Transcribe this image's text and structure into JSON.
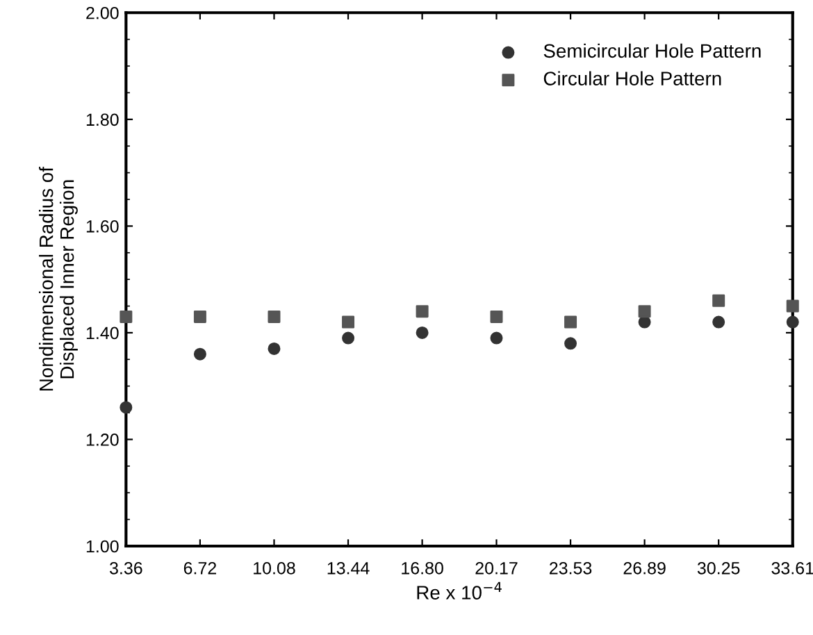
{
  "chart_data": {
    "type": "scatter",
    "xlabel": "Re x 10$^{−4}$",
    "ylabel": "Nondimensional Radius of\nDisplaced Inner Region",
    "x": [
      3.36,
      6.72,
      10.08,
      13.44,
      16.8,
      20.17,
      23.53,
      26.89,
      30.25,
      33.61
    ],
    "series": [
      {
        "name": "Semicircular Hole Pattern",
        "color": "#333333",
        "marker": "circle",
        "values": [
          1.26,
          1.36,
          1.37,
          1.39,
          1.4,
          1.39,
          1.38,
          1.42,
          1.42,
          1.42
        ]
      },
      {
        "name": "Circular Hole Pattern",
        "color": "#555555",
        "marker": "square",
        "values": [
          1.43,
          1.43,
          1.43,
          1.42,
          1.44,
          1.43,
          1.42,
          1.44,
          1.46,
          1.45
        ]
      }
    ],
    "xlim": [
      3.36,
      33.61
    ],
    "ylim": [
      1.0,
      2.0
    ],
    "xticks": [
      3.36,
      6.72,
      10.08,
      13.44,
      {
        "value": 16.8,
        "label": "16.80"
      },
      20.17,
      23.53,
      26.89,
      30.25,
      33.61
    ],
    "yticks": [
      {
        "value": 1.0,
        "label": "1.00"
      },
      {
        "value": 1.2,
        "label": "1.20"
      },
      {
        "value": 1.4,
        "label": "1.40"
      },
      {
        "value": 1.6,
        "label": "1.60"
      },
      {
        "value": 1.8,
        "label": "1.80"
      },
      {
        "value": 2.0,
        "label": "2.00"
      }
    ],
    "grid": false,
    "legend": "top right"
  }
}
